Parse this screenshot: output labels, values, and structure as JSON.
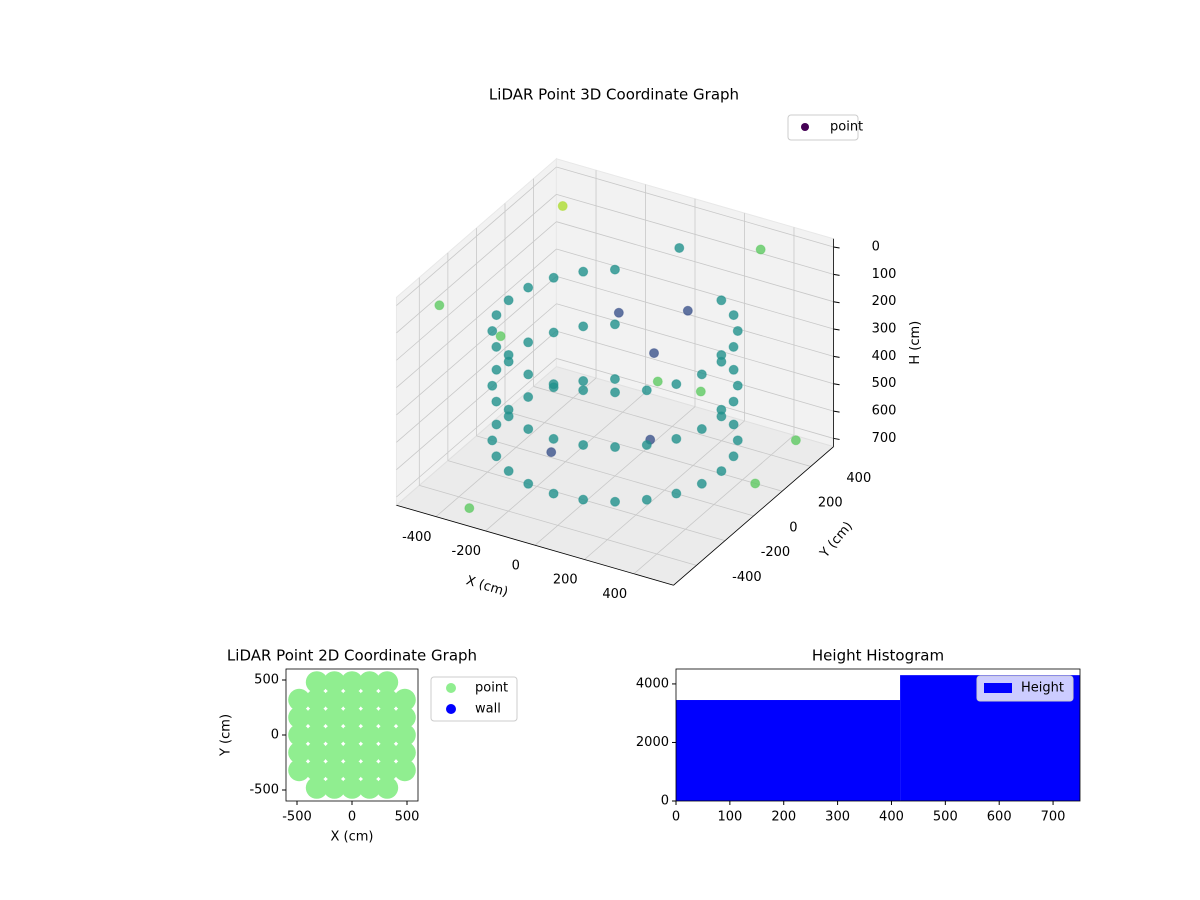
{
  "chart_data": [
    {
      "type": "scatter3d",
      "title": "LiDAR Point 3D Coordinate Graph",
      "x_label": "X (cm)",
      "y_label": "Y (cm)",
      "z_label": "H (cm)",
      "xlim": [
        -560,
        560
      ],
      "ylim": [
        -560,
        560
      ],
      "zlim": [
        730,
        -30
      ],
      "xticks": [
        -400,
        -200,
        0,
        200,
        400
      ],
      "yticks": [
        -400,
        -200,
        0,
        200,
        400
      ],
      "zticks": [
        0,
        100,
        200,
        300,
        400,
        500,
        600,
        700
      ],
      "colormap": [
        "#440154",
        "#3b528b",
        "#21918c",
        "#5ec962",
        "#addc30"
      ],
      "legend": "upper right",
      "grid": true,
      "series": [
        {
          "name": "point",
          "color": "#440154",
          "x": [
            -215,
            -215,
            -215,
            -304,
            -304,
            -304,
            -372,
            -372,
            -372,
            -415,
            -415,
            -415,
            -430,
            -430,
            -430,
            -415,
            -415,
            -415,
            -372,
            -372,
            -372,
            -304,
            -304,
            -304,
            -215,
            -215,
            -215,
            -111,
            -111,
            -111,
            0,
            0,
            0,
            111,
            111,
            111,
            215,
            215,
            215,
            304,
            304,
            304,
            372,
            372,
            372,
            415,
            415,
            415,
            430,
            430,
            430,
            415,
            415,
            415,
            372,
            372,
            372,
            304,
            304,
            304,
            215,
            215,
            215,
            -500,
            450,
            -300,
            500,
            100,
            -100,
            200,
            -450,
            520,
            0,
            -520,
            300,
            -200,
            150,
            480
          ],
          "y": [
            372,
            372,
            372,
            304,
            304,
            304,
            215,
            215,
            215,
            111,
            111,
            111,
            0,
            0,
            0,
            -111,
            -111,
            -111,
            -215,
            -215,
            -215,
            -304,
            -304,
            -304,
            -372,
            -372,
            -372,
            -415,
            -415,
            -415,
            -430,
            -430,
            -430,
            -415,
            -415,
            -415,
            -372,
            -372,
            -372,
            -304,
            -304,
            -304,
            -215,
            -215,
            -215,
            -111,
            -111,
            -111,
            0,
            0,
            0,
            111,
            111,
            111,
            215,
            215,
            215,
            304,
            304,
            304,
            372,
            372,
            372,
            500,
            -480,
            -500,
            400,
            100,
            200,
            -100,
            -450,
            -300,
            450,
            100,
            500,
            -100,
            250,
            150
          ],
          "values": [
            200,
            400,
            600,
            200,
            400,
            600,
            200,
            400,
            600,
            200,
            400,
            600,
            200,
            400,
            600,
            200,
            400,
            600,
            200,
            400,
            600,
            200,
            400,
            600,
            200,
            400,
            600,
            200,
            400,
            600,
            200,
            400,
            600,
            200,
            400,
            600,
            200,
            400,
            600,
            200,
            400,
            600,
            200,
            400,
            600,
            200,
            400,
            600,
            200,
            400,
            600,
            200,
            400,
            600,
            200,
            400,
            600,
            200,
            400,
            600,
            200,
            400,
            600,
            100,
            50,
            700,
            650,
            300,
            250,
            500,
            20,
            150,
            100,
            400,
            50,
            650,
            200,
            700
          ]
        }
      ]
    },
    {
      "type": "scatter",
      "title": "LiDAR Point 2D Coordinate Graph",
      "x_label": "X (cm)",
      "y_label": "Y (cm)",
      "xlim": [
        -600,
        600
      ],
      "ylim": [
        -600,
        600
      ],
      "xticks": [
        -500,
        0,
        500
      ],
      "yticks": [
        -500,
        0,
        500
      ],
      "legend": "outside right",
      "series": [
        {
          "name": "point",
          "color": "#90ee90",
          "x": [
            -320,
            -160,
            0,
            160,
            320,
            -480,
            -320,
            -160,
            0,
            160,
            320,
            480,
            -480,
            -320,
            -160,
            0,
            160,
            320,
            480,
            -480,
            -320,
            -160,
            0,
            160,
            320,
            480,
            -480,
            -320,
            -160,
            0,
            160,
            320,
            480,
            -480,
            -320,
            -160,
            0,
            160,
            320,
            480,
            -320,
            -160,
            0,
            160,
            320
          ],
          "values": [
            -480,
            -480,
            -480,
            -480,
            -480,
            -320,
            -320,
            -320,
            -320,
            -320,
            -320,
            -320,
            -160,
            -160,
            -160,
            -160,
            -160,
            -160,
            -160,
            0,
            0,
            0,
            0,
            0,
            0,
            0,
            160,
            160,
            160,
            160,
            160,
            160,
            160,
            320,
            320,
            320,
            320,
            320,
            320,
            320,
            480,
            480,
            480,
            480,
            480
          ]
        },
        {
          "name": "wall",
          "color": "#0000ff",
          "x": [],
          "values": []
        }
      ]
    },
    {
      "type": "histogram",
      "title": "Height Histogram",
      "bins": [
        0,
        416,
        750
      ],
      "values": [
        3450,
        4300
      ],
      "name": "Height",
      "color": "#0000ff",
      "xlim": [
        0,
        750
      ],
      "ylim": [
        0,
        4510
      ],
      "xticks": [
        0,
        100,
        200,
        300,
        400,
        500,
        600,
        700
      ],
      "yticks": [
        0,
        2000,
        4000
      ],
      "legend": "upper right"
    }
  ]
}
